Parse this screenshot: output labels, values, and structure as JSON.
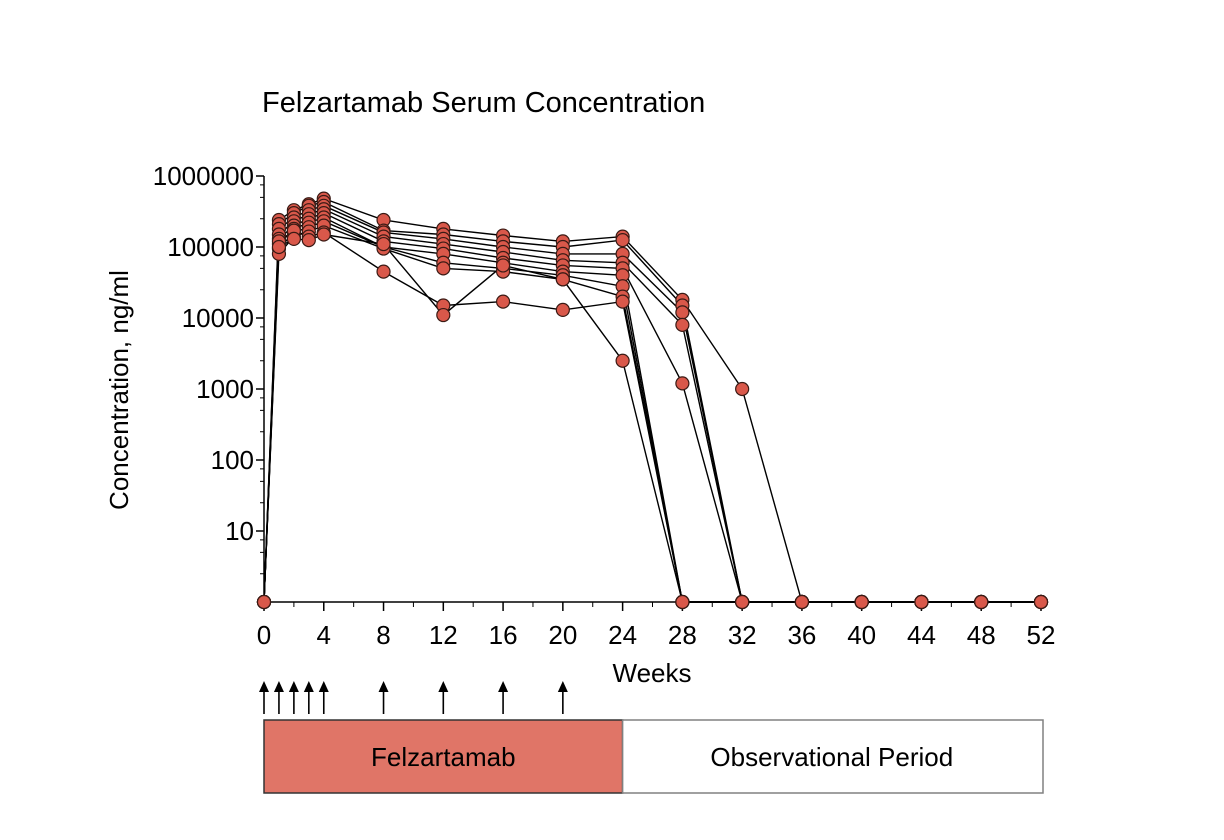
{
  "colors": {
    "marker_fill": "#d9584a",
    "marker_stroke": "#3a1a14",
    "line": "#000000",
    "treatment_box": "#e07567",
    "observation_box": "#ffffff",
    "observation_box_border": "#808080"
  },
  "chart_data": {
    "type": "line",
    "title": "Felzartamab Serum Concentration",
    "xlabel": "Weeks",
    "ylabel": "Concentration, ng/ml",
    "yscale": "log",
    "xlim": [
      0,
      52
    ],
    "ylim": [
      1,
      1000000
    ],
    "x_ticks": [
      0,
      4,
      8,
      12,
      16,
      20,
      24,
      28,
      32,
      36,
      40,
      44,
      48,
      52
    ],
    "x_tick_labels": [
      "0",
      "4",
      "8",
      "12",
      "16",
      "20",
      "24",
      "28",
      "32",
      "36",
      "40",
      "44",
      "48",
      "52"
    ],
    "y_ticks": [
      10,
      100,
      1000,
      10000,
      100000,
      1000000
    ],
    "y_tick_labels": [
      "10",
      "100",
      "1000",
      "10000",
      "100000",
      "1000000"
    ],
    "below_detection_value": 1,
    "grid": false,
    "legend": "none",
    "series": [
      {
        "x": [
          0,
          1,
          2,
          3,
          4,
          8,
          12,
          16,
          20,
          24,
          28,
          32,
          36,
          40,
          44,
          48,
          52
        ],
        "values": [
          1,
          240000,
          330000,
          400000,
          480000,
          240000,
          180000,
          145000,
          120000,
          140000,
          18000,
          1000,
          1,
          1,
          1,
          1,
          1
        ]
      },
      {
        "x": [
          0,
          1,
          2,
          3,
          4,
          8,
          12,
          16,
          20,
          24,
          28,
          32,
          36,
          40,
          44,
          48,
          52
        ],
        "values": [
          1,
          210000,
          300000,
          380000,
          430000,
          170000,
          150000,
          120000,
          100000,
          125000,
          15000,
          1,
          1,
          1,
          1,
          1,
          1
        ]
      },
      {
        "x": [
          0,
          1,
          2,
          3,
          4,
          8,
          12,
          16,
          20,
          24,
          28,
          32,
          36,
          40,
          44,
          48,
          52
        ],
        "values": [
          1,
          180000,
          260000,
          330000,
          380000,
          160000,
          130000,
          100000,
          80000,
          80000,
          12000,
          1,
          1,
          1,
          1,
          1,
          1
        ]
      },
      {
        "x": [
          0,
          1,
          2,
          3,
          4,
          8,
          12,
          16,
          20,
          24,
          28,
          32,
          36,
          40,
          44,
          48,
          52
        ],
        "values": [
          1,
          150000,
          230000,
          290000,
          340000,
          140000,
          110000,
          85000,
          65000,
          60000,
          8000,
          1,
          1,
          1,
          1,
          1,
          1
        ]
      },
      {
        "x": [
          0,
          1,
          2,
          3,
          4,
          8,
          12,
          16,
          20,
          24,
          28,
          32,
          36,
          40,
          44,
          48,
          52
        ],
        "values": [
          1,
          130000,
          200000,
          250000,
          300000,
          120000,
          95000,
          70000,
          55000,
          50000,
          1200,
          1,
          1,
          1,
          1,
          1,
          1
        ]
      },
      {
        "x": [
          0,
          1,
          2,
          3,
          4,
          8,
          12,
          16,
          20,
          24,
          28,
          32,
          36,
          40,
          44,
          48,
          52
        ],
        "values": [
          1,
          110000,
          180000,
          220000,
          260000,
          100000,
          80000,
          60000,
          45000,
          40000,
          1,
          1,
          1,
          1,
          1,
          1,
          1
        ]
      },
      {
        "x": [
          0,
          1,
          2,
          3,
          4,
          8,
          12,
          16,
          20,
          24,
          28,
          32,
          36,
          40,
          44,
          48,
          52
        ],
        "values": [
          1,
          95000,
          160000,
          190000,
          230000,
          100000,
          60000,
          50000,
          40000,
          28000,
          1,
          1,
          1,
          1,
          1,
          1,
          1
        ]
      },
      {
        "x": [
          0,
          1,
          2,
          3,
          4,
          8,
          12,
          16,
          20,
          24,
          28,
          32,
          36,
          40,
          44,
          48,
          52
        ],
        "values": [
          1,
          80000,
          140000,
          165000,
          200000,
          95000,
          50000,
          45000,
          35000,
          20000,
          1,
          1,
          1,
          1,
          1,
          1,
          1
        ]
      },
      {
        "x": [
          0,
          1,
          2,
          3,
          4,
          8,
          12,
          16,
          20,
          24,
          28,
          32,
          36,
          40,
          44,
          48,
          52
        ],
        "values": [
          1,
          120000,
          170000,
          140000,
          160000,
          45000,
          15000,
          17000,
          13000,
          17000,
          1,
          1,
          1,
          1,
          1,
          1,
          1
        ]
      },
      {
        "x": [
          0,
          1,
          2,
          3,
          4,
          8,
          12,
          16,
          20,
          24,
          28,
          32,
          36,
          40,
          44,
          48,
          52
        ],
        "values": [
          1,
          100000,
          130000,
          125000,
          150000,
          110000,
          11000,
          55000,
          35000,
          2500,
          1,
          1,
          1,
          1,
          1,
          1,
          1
        ]
      }
    ],
    "dosing_weeks": [
      0,
      1,
      2,
      3,
      4,
      8,
      12,
      16,
      20
    ],
    "periods": [
      {
        "label": "Felzartamab",
        "start": 0,
        "end": 24
      },
      {
        "label": "Observational Period",
        "start": 24,
        "end": 52
      }
    ]
  }
}
